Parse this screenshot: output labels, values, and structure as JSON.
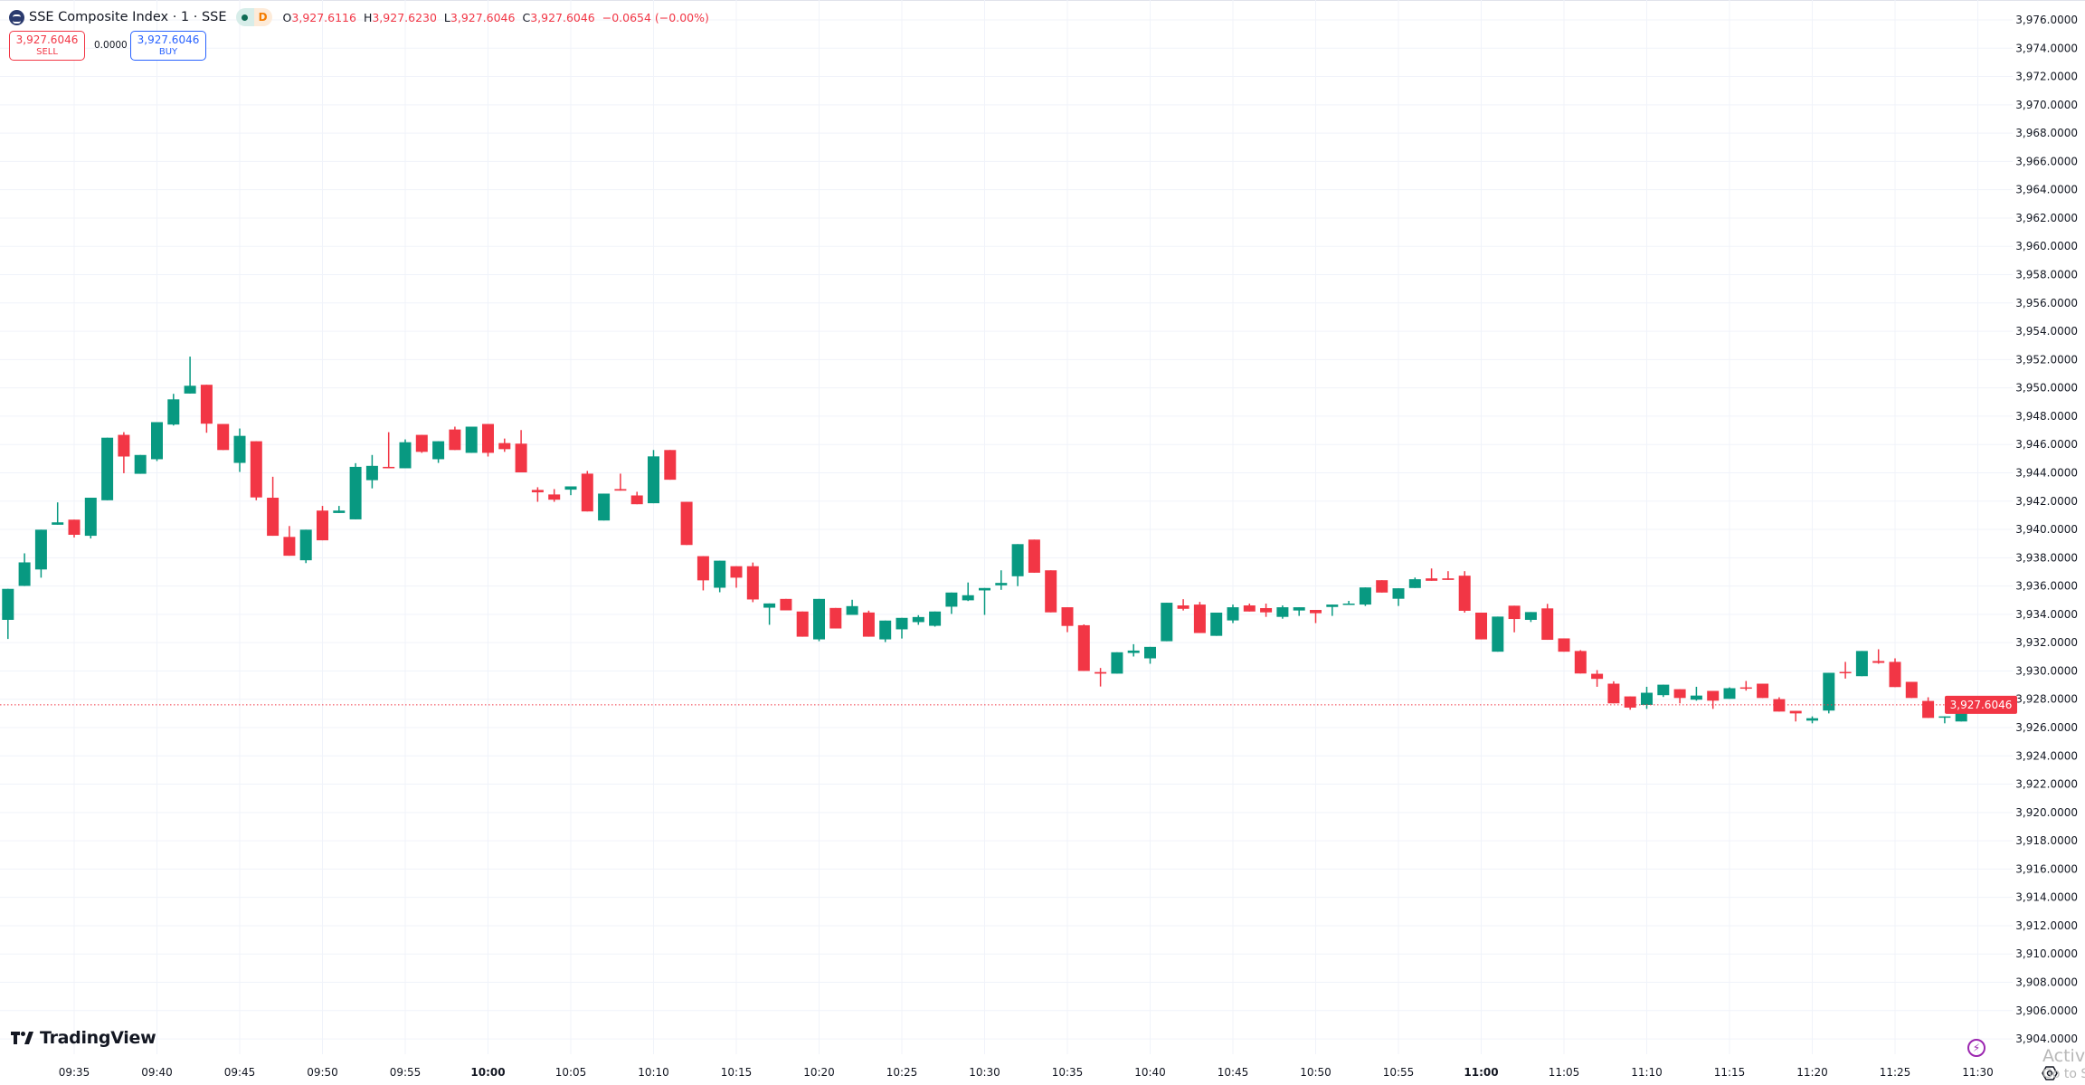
{
  "header": {
    "symbol": "SSE Composite Index · 1 · SSE",
    "session_badge": "D",
    "ohlc": {
      "o_label": "O",
      "o": "3,927.6116",
      "h_label": "H",
      "h": "3,927.6230",
      "l_label": "L",
      "l": "3,927.6046",
      "c_label": "C",
      "c": "3,927.6046",
      "change": "−0.0654 (−0.00%)"
    }
  },
  "trade": {
    "sell_price": "3,927.6046",
    "sell_label": "SELL",
    "spread": "0.0000",
    "buy_price": "3,927.6046",
    "buy_label": "BUY"
  },
  "branding": {
    "logo_text": "TradingView"
  },
  "watermark": {
    "line1": "Activ",
    "line2": "Go to S"
  },
  "colors": {
    "up": "#089981",
    "down": "#f23645",
    "grid": "#f0f3fa",
    "last_price": "#f23645",
    "buy": "#2962ff"
  },
  "icons": {
    "symbol": "sse-logo-icon",
    "status": "market-status-dot-icon",
    "bolt": "lightning-icon",
    "settings": "settings-gear-icon"
  },
  "chart_data": {
    "type": "candlestick",
    "interval": "1 minute",
    "ylim": [
      3903,
      3977
    ],
    "y_ticks": [
      "3,976.0000",
      "3,974.0000",
      "3,972.0000",
      "3,970.0000",
      "3,968.0000",
      "3,966.0000",
      "3,964.0000",
      "3,962.0000",
      "3,960.0000",
      "3,958.0000",
      "3,956.0000",
      "3,954.0000",
      "3,952.0000",
      "3,950.0000",
      "3,948.0000",
      "3,946.0000",
      "3,944.0000",
      "3,942.0000",
      "3,940.0000",
      "3,938.0000",
      "3,936.0000",
      "3,934.0000",
      "3,932.0000",
      "3,930.0000",
      "3,928.0000",
      "3,926.0000",
      "3,924.0000",
      "3,922.0000",
      "3,920.0000",
      "3,918.0000",
      "3,916.0000",
      "3,914.0000",
      "3,912.0000",
      "3,910.0000",
      "3,908.0000",
      "3,906.0000",
      "3,904.0000"
    ],
    "x_ticks": [
      "09:35",
      "09:40",
      "09:45",
      "09:50",
      "09:55",
      "10:00",
      "10:05",
      "10:10",
      "10:15",
      "10:20",
      "10:25",
      "10:30",
      "10:35",
      "10:40",
      "10:45",
      "10:50",
      "10:55",
      "11:00",
      "11:05",
      "11:10",
      "11:15",
      "11:20",
      "11:25",
      "11:30"
    ],
    "x_ticks_bold": [
      "10:00",
      "11:00"
    ],
    "last_price": "3,927.6046",
    "grid": true,
    "columns": [
      "time",
      "open",
      "high",
      "low",
      "close"
    ],
    "candles": [
      [
        "09:31",
        3933.61,
        3935.8,
        3932.26,
        3935.8
      ],
      [
        "09:32",
        3936.01,
        3938.31,
        3936.0,
        3937.67
      ],
      [
        "09:33",
        3937.17,
        3939.98,
        3936.59,
        3939.98
      ],
      [
        "09:34",
        3940.33,
        3941.91,
        3940.33,
        3940.5
      ],
      [
        "09:35",
        3940.69,
        3940.69,
        3939.43,
        3939.62
      ],
      [
        "09:36",
        3939.55,
        3942.24,
        3939.36,
        3942.24
      ],
      [
        "09:37",
        3942.06,
        3946.48,
        3942.06,
        3946.48
      ],
      [
        "09:38",
        3946.68,
        3946.87,
        3943.97,
        3945.15
      ],
      [
        "09:39",
        3943.93,
        3945.26,
        3943.93,
        3945.26
      ],
      [
        "09:40",
        3944.96,
        3947.58,
        3944.83,
        3947.58
      ],
      [
        "09:41",
        3947.41,
        3949.58,
        3947.34,
        3949.19
      ],
      [
        "09:42",
        3949.6,
        3952.21,
        3949.6,
        3950.15
      ],
      [
        "09:43",
        3950.22,
        3950.22,
        3946.83,
        3947.47
      ],
      [
        "09:44",
        3947.45,
        3947.45,
        3945.61,
        3945.61
      ],
      [
        "09:45",
        3944.7,
        3947.13,
        3944.06,
        3946.61
      ],
      [
        "09:46",
        3946.23,
        3946.23,
        3942.06,
        3942.26
      ],
      [
        "09:47",
        3942.24,
        3943.72,
        3939.55,
        3939.55
      ],
      [
        "09:48",
        3939.47,
        3940.24,
        3938.14,
        3938.14
      ],
      [
        "09:49",
        3937.82,
        3939.98,
        3937.62,
        3939.98
      ],
      [
        "09:50",
        3941.33,
        3941.66,
        3939.23,
        3939.23
      ],
      [
        "09:51",
        3941.16,
        3941.66,
        3941.16,
        3941.33
      ],
      [
        "09:52",
        3940.71,
        3944.68,
        3940.71,
        3944.42
      ],
      [
        "09:53",
        3943.48,
        3945.26,
        3942.9,
        3944.49
      ],
      [
        "09:54",
        3944.42,
        3946.87,
        3944.32,
        3944.32
      ],
      [
        "09:55",
        3944.32,
        3946.36,
        3944.32,
        3946.16
      ],
      [
        "09:56",
        3946.68,
        3946.68,
        3945.41,
        3945.48
      ],
      [
        "09:57",
        3944.96,
        3946.23,
        3944.7,
        3946.23
      ],
      [
        "09:58",
        3947.06,
        3947.26,
        3945.61,
        3945.61
      ],
      [
        "09:59",
        3945.41,
        3947.26,
        3945.41,
        3947.26
      ],
      [
        "10:00",
        3947.45,
        3947.45,
        3945.15,
        3945.41
      ],
      [
        "10:01",
        3946.1,
        3946.42,
        3945.48,
        3945.67
      ],
      [
        "10:02",
        3946.06,
        3947.02,
        3944.03,
        3944.03
      ],
      [
        "10:03",
        3942.79,
        3942.98,
        3941.95,
        3942.62
      ],
      [
        "10:04",
        3942.47,
        3942.85,
        3941.95,
        3942.1
      ],
      [
        "10:05",
        3942.81,
        3943.04,
        3942.42,
        3943.04
      ],
      [
        "10:06",
        3943.94,
        3944.13,
        3941.27,
        3941.27
      ],
      [
        "10:07",
        3940.63,
        3942.53,
        3940.63,
        3942.53
      ],
      [
        "10:08",
        3942.85,
        3943.94,
        3942.74,
        3942.74
      ],
      [
        "10:09",
        3942.4,
        3942.66,
        3941.78,
        3941.78
      ],
      [
        "10:10",
        3941.85,
        3945.61,
        3941.85,
        3945.16
      ],
      [
        "10:11",
        3945.61,
        3945.61,
        3943.51,
        3943.51
      ],
      [
        "10:12",
        3941.95,
        3941.95,
        3938.9,
        3938.9
      ],
      [
        "10:13",
        3938.11,
        3938.11,
        3935.69,
        3936.4
      ],
      [
        "10:14",
        3935.88,
        3937.79,
        3935.56,
        3937.79
      ],
      [
        "10:15",
        3937.4,
        3937.4,
        3935.88,
        3936.59
      ],
      [
        "10:16",
        3937.4,
        3937.66,
        3934.86,
        3935.05
      ],
      [
        "10:17",
        3934.47,
        3934.77,
        3933.26,
        3934.77
      ],
      [
        "10:18",
        3935.09,
        3935.09,
        3934.28,
        3934.28
      ],
      [
        "10:19",
        3934.2,
        3934.2,
        3932.42,
        3932.42
      ],
      [
        "10:20",
        3932.23,
        3935.09,
        3932.1,
        3935.09
      ],
      [
        "10:21",
        3934.45,
        3934.45,
        3933.0,
        3933.0
      ],
      [
        "10:22",
        3933.96,
        3935.03,
        3933.96,
        3934.58
      ],
      [
        "10:23",
        3934.13,
        3934.26,
        3932.42,
        3932.42
      ],
      [
        "10:24",
        3932.23,
        3933.56,
        3932.04,
        3933.56
      ],
      [
        "10:25",
        3932.94,
        3933.75,
        3932.29,
        3933.75
      ],
      [
        "10:26",
        3933.45,
        3933.94,
        3933.26,
        3933.81
      ],
      [
        "10:27",
        3933.19,
        3934.2,
        3933.13,
        3934.2
      ],
      [
        "10:28",
        3934.54,
        3935.54,
        3934.03,
        3935.54
      ],
      [
        "10:29",
        3934.99,
        3936.25,
        3934.94,
        3935.35
      ],
      [
        "10:30",
        3935.69,
        3935.86,
        3933.96,
        3935.86
      ],
      [
        "10:31",
        3936.05,
        3937.11,
        3935.73,
        3936.22
      ],
      [
        "10:32",
        3936.69,
        3938.96,
        3935.99,
        3938.96
      ],
      [
        "10:33",
        3939.28,
        3939.28,
        3936.94,
        3936.94
      ],
      [
        "10:34",
        3937.11,
        3937.11,
        3934.14,
        3934.14
      ],
      [
        "10:35",
        3934.5,
        3934.5,
        3932.74,
        3933.18
      ],
      [
        "10:36",
        3933.23,
        3933.29,
        3930.0,
        3930.0
      ],
      [
        "10:37",
        3929.92,
        3930.21,
        3928.9,
        3929.81
      ],
      [
        "10:38",
        3929.81,
        3931.32,
        3929.81,
        3931.32
      ],
      [
        "10:39",
        3931.27,
        3931.89,
        3931.02,
        3931.44
      ],
      [
        "10:40",
        3930.89,
        3931.7,
        3930.51,
        3931.7
      ],
      [
        "10:41",
        3932.1,
        3934.82,
        3932.1,
        3934.82
      ],
      [
        "10:42",
        3934.63,
        3935.07,
        3934.27,
        3934.39
      ],
      [
        "10:43",
        3934.69,
        3934.88,
        3932.68,
        3932.68
      ],
      [
        "10:44",
        3932.48,
        3934.12,
        3932.48,
        3934.12
      ],
      [
        "10:45",
        3933.57,
        3934.69,
        3933.38,
        3934.5
      ],
      [
        "10:46",
        3934.63,
        3934.76,
        3934.2,
        3934.2
      ],
      [
        "10:47",
        3934.44,
        3934.76,
        3933.82,
        3934.14
      ],
      [
        "10:48",
        3933.82,
        3934.63,
        3933.69,
        3934.5
      ],
      [
        "10:49",
        3934.27,
        3934.5,
        3933.89,
        3934.5
      ],
      [
        "10:50",
        3934.31,
        3934.31,
        3933.38,
        3934.08
      ],
      [
        "10:51",
        3934.52,
        3934.69,
        3933.89,
        3934.69
      ],
      [
        "10:52",
        3934.71,
        3934.95,
        3934.71,
        3934.76
      ],
      [
        "10:53",
        3934.69,
        3935.9,
        3934.59,
        3935.9
      ],
      [
        "10:54",
        3936.41,
        3936.41,
        3935.54,
        3935.54
      ],
      [
        "10:55",
        3935.1,
        3935.84,
        3934.59,
        3935.84
      ],
      [
        "10:56",
        3935.86,
        3936.6,
        3935.86,
        3936.48
      ],
      [
        "10:57",
        3936.54,
        3937.24,
        3936.37,
        3936.37
      ],
      [
        "10:58",
        3936.54,
        3937.05,
        3936.43,
        3936.43
      ],
      [
        "10:59",
        3936.73,
        3937.05,
        3934.12,
        3934.25
      ],
      [
        "11:00",
        3934.12,
        3934.12,
        3932.23,
        3932.23
      ],
      [
        "11:01",
        3931.36,
        3933.84,
        3931.36,
        3933.84
      ],
      [
        "11:02",
        3934.61,
        3934.61,
        3932.73,
        3933.67
      ],
      [
        "11:03",
        3933.61,
        3934.16,
        3933.46,
        3934.16
      ],
      [
        "11:04",
        3934.42,
        3934.74,
        3932.2,
        3932.2
      ],
      [
        "11:05",
        3932.3,
        3932.3,
        3931.36,
        3931.36
      ],
      [
        "11:06",
        3931.41,
        3931.47,
        3929.82,
        3929.82
      ],
      [
        "11:07",
        3929.8,
        3930.06,
        3928.88,
        3929.44
      ],
      [
        "11:08",
        3929.1,
        3929.27,
        3927.71,
        3927.71
      ],
      [
        "11:09",
        3928.2,
        3928.2,
        3927.26,
        3927.41
      ],
      [
        "11:10",
        3927.6,
        3928.88,
        3927.32,
        3928.46
      ],
      [
        "11:11",
        3928.29,
        3929.03,
        3928.16,
        3929.03
      ],
      [
        "11:12",
        3928.71,
        3928.71,
        3927.71,
        3928.09
      ],
      [
        "11:13",
        3927.97,
        3928.88,
        3927.9,
        3928.26
      ],
      [
        "11:14",
        3928.59,
        3928.59,
        3927.32,
        3927.9
      ],
      [
        "11:15",
        3928.03,
        3928.84,
        3928.03,
        3928.78
      ],
      [
        "11:16",
        3928.84,
        3929.29,
        3928.61,
        3928.76
      ],
      [
        "11:17",
        3929.1,
        3929.1,
        3928.09,
        3928.09
      ],
      [
        "11:18",
        3928.01,
        3928.14,
        3927.13,
        3927.13
      ],
      [
        "11:19",
        3927.18,
        3927.18,
        3926.43,
        3927.0
      ],
      [
        "11:20",
        3926.49,
        3926.79,
        3926.3,
        3926.66
      ],
      [
        "11:21",
        3927.2,
        3929.87,
        3927.0,
        3929.87
      ],
      [
        "11:22",
        3929.93,
        3930.64,
        3929.46,
        3929.87
      ],
      [
        "11:23",
        3929.63,
        3931.41,
        3929.63,
        3931.41
      ],
      [
        "11:24",
        3930.7,
        3931.53,
        3930.51,
        3930.57
      ],
      [
        "11:25",
        3930.64,
        3930.89,
        3928.86,
        3928.86
      ],
      [
        "11:26",
        3929.23,
        3929.23,
        3928.09,
        3928.09
      ],
      [
        "11:27",
        3927.88,
        3928.14,
        3926.68,
        3926.68
      ],
      [
        "11:28",
        3926.7,
        3926.79,
        3926.3,
        3926.79
      ],
      [
        "11:29",
        3926.43,
        3927.69,
        3926.43,
        3927.61
      ],
      [
        "11:30",
        3927.6116,
        3927.623,
        3927.6046,
        3927.6046
      ]
    ]
  }
}
